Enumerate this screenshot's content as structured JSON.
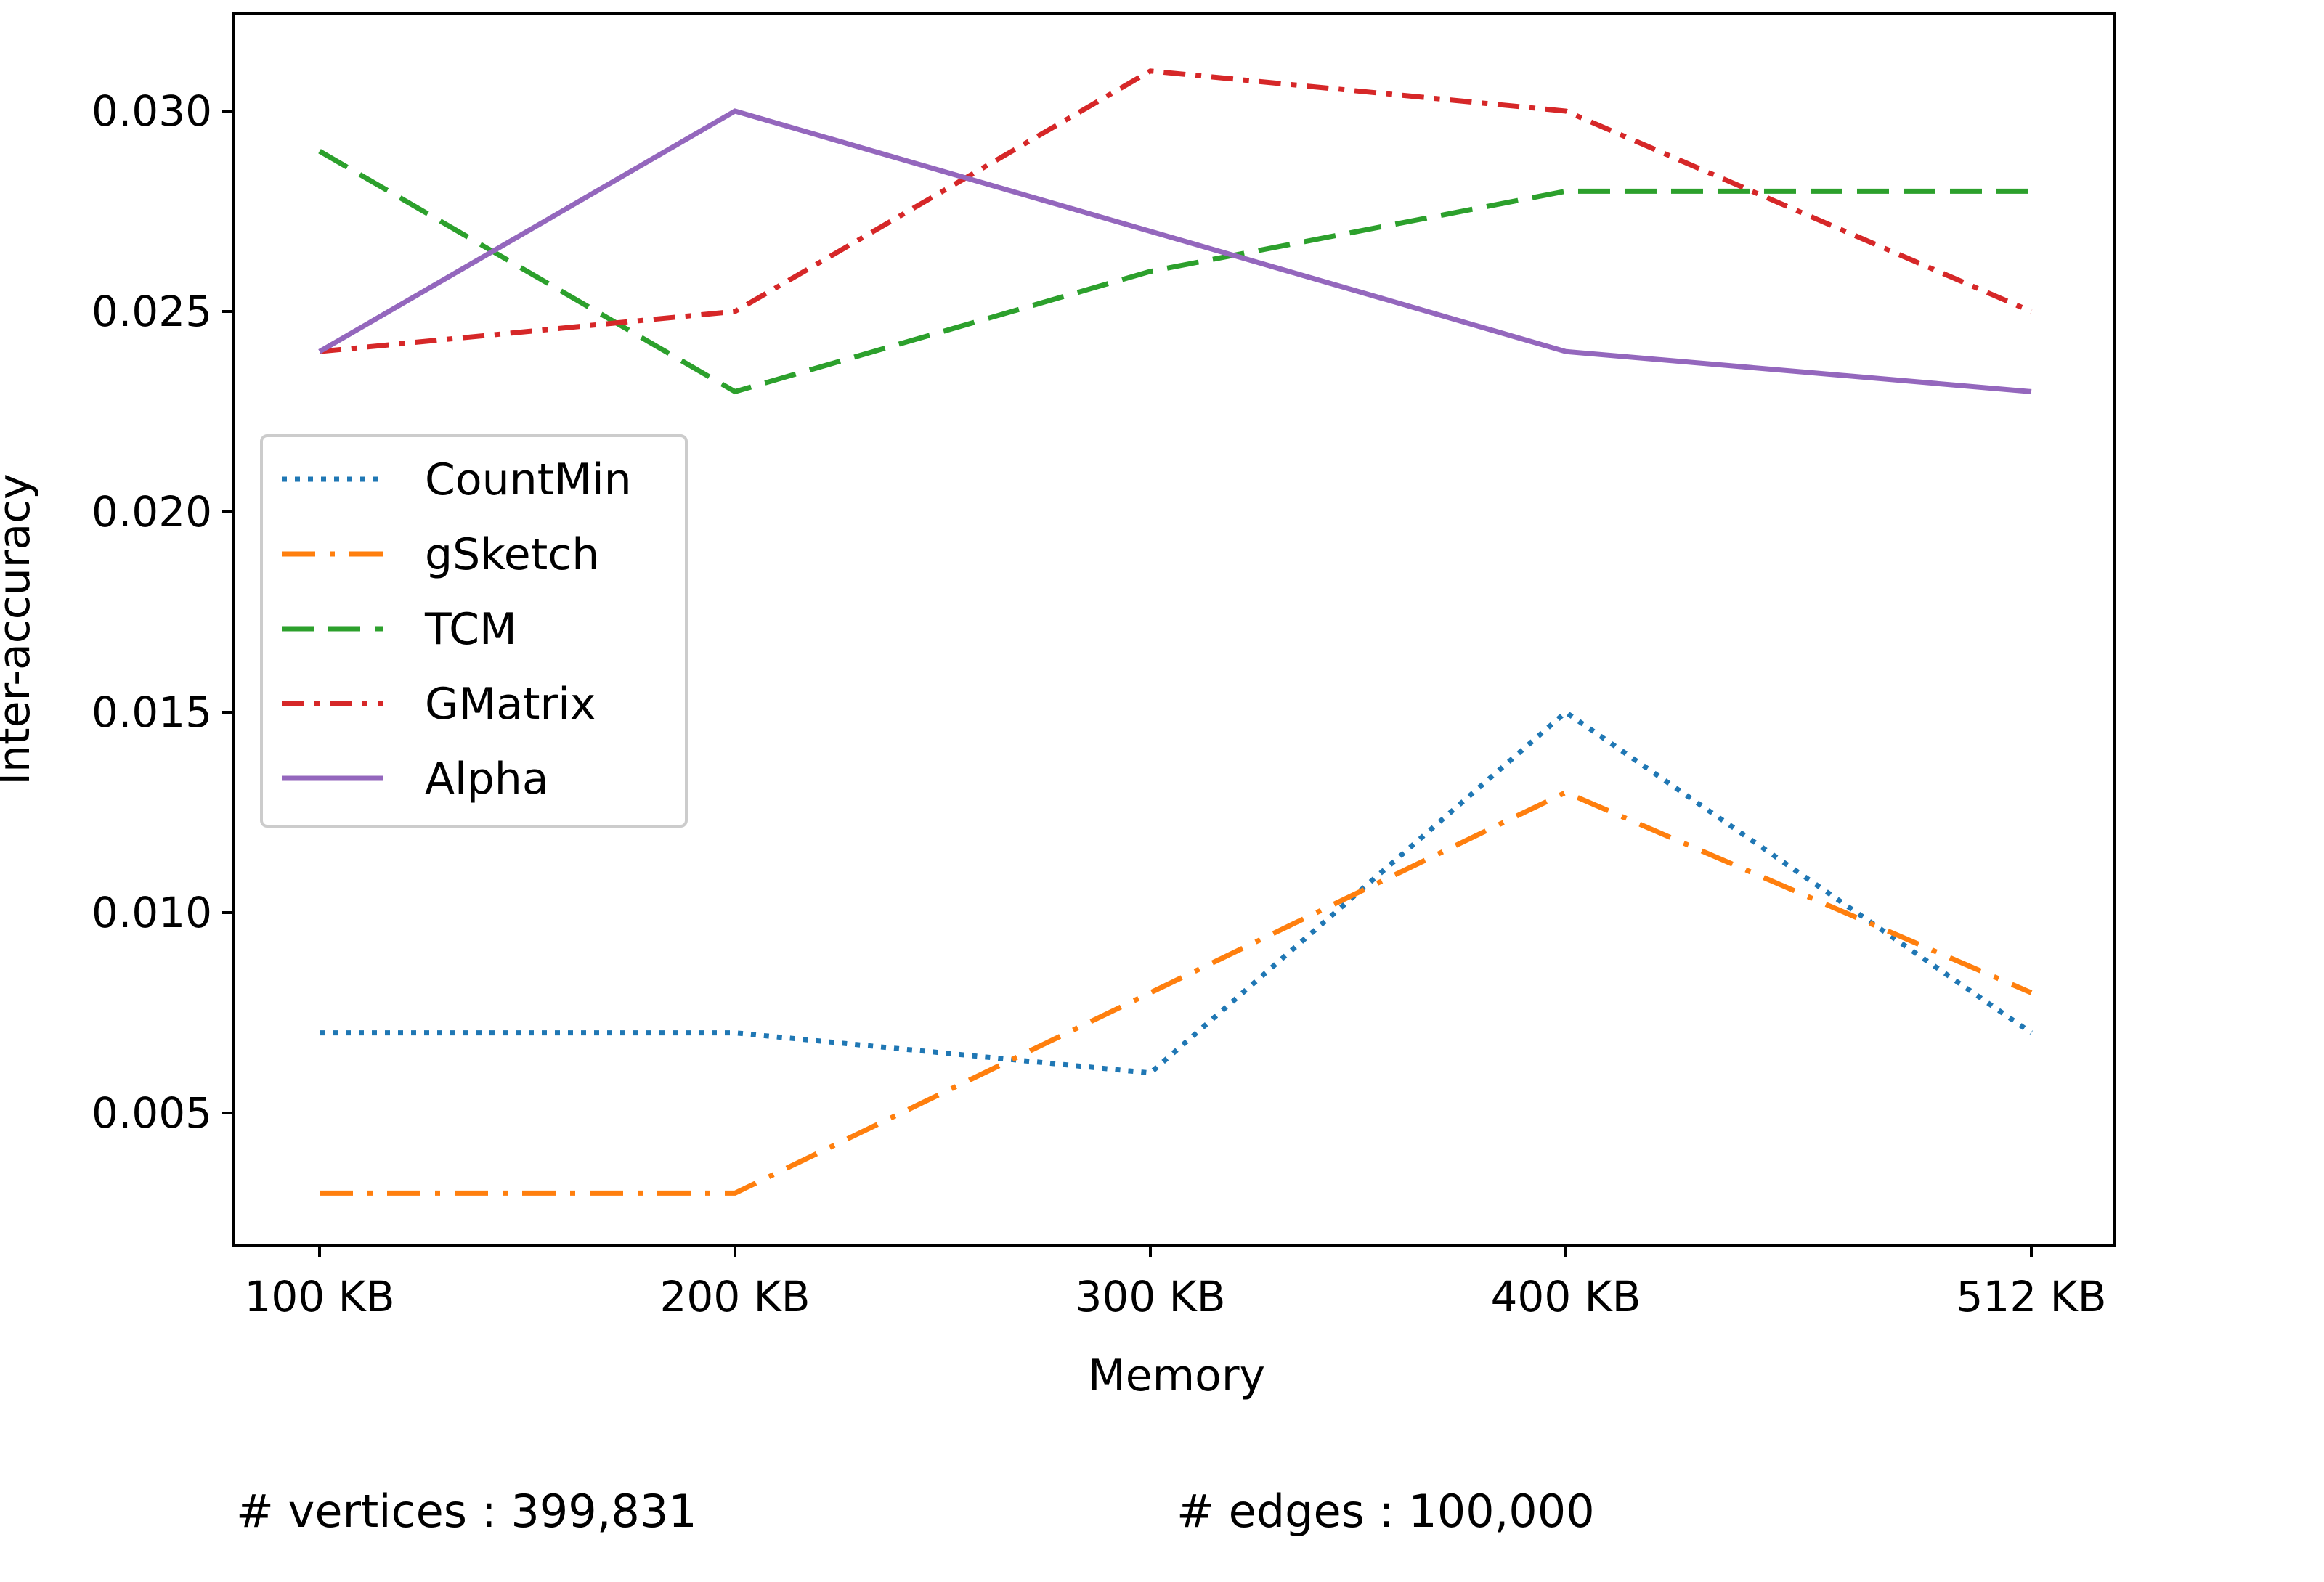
{
  "chart_data": {
    "type": "line",
    "categories": [
      "100 KB",
      "200 KB",
      "300 KB",
      "400 KB",
      "512 KB"
    ],
    "x": [
      100,
      200,
      300,
      400,
      512
    ],
    "xlabel": "Memory",
    "ylabel": "Inter-accuracy",
    "ylim": [
      0.0017,
      0.0325
    ],
    "yticks": [
      0.005,
      0.01,
      0.015,
      0.02,
      0.025,
      0.03
    ],
    "ytick_labels": [
      "0.005",
      "0.010",
      "0.015",
      "0.020",
      "0.025",
      "0.030"
    ],
    "grid": false,
    "legend_position": "center-left",
    "series": [
      {
        "name": "CountMin",
        "color": "#1f77b4",
        "dash": "dotted",
        "values": [
          0.007,
          0.007,
          0.006,
          0.015,
          0.007
        ]
      },
      {
        "name": "gSketch",
        "color": "#ff7f0e",
        "dash": "dashdot-long",
        "values": [
          0.003,
          0.003,
          0.008,
          0.013,
          0.008
        ]
      },
      {
        "name": "TCM",
        "color": "#2ca02c",
        "dash": "dashed",
        "values": [
          0.029,
          0.023,
          0.026,
          0.028,
          0.028
        ]
      },
      {
        "name": "GMatrix",
        "color": "#d62728",
        "dash": "dashdot",
        "values": [
          0.024,
          0.025,
          0.031,
          0.03,
          0.025
        ]
      },
      {
        "name": "Alpha",
        "color": "#9467bd",
        "dash": "solid",
        "values": [
          0.024,
          0.03,
          0.027,
          0.024,
          0.023
        ]
      }
    ]
  },
  "footer": {
    "vertices": "# vertices : 399,831",
    "edges": "# edges : 100,000"
  }
}
